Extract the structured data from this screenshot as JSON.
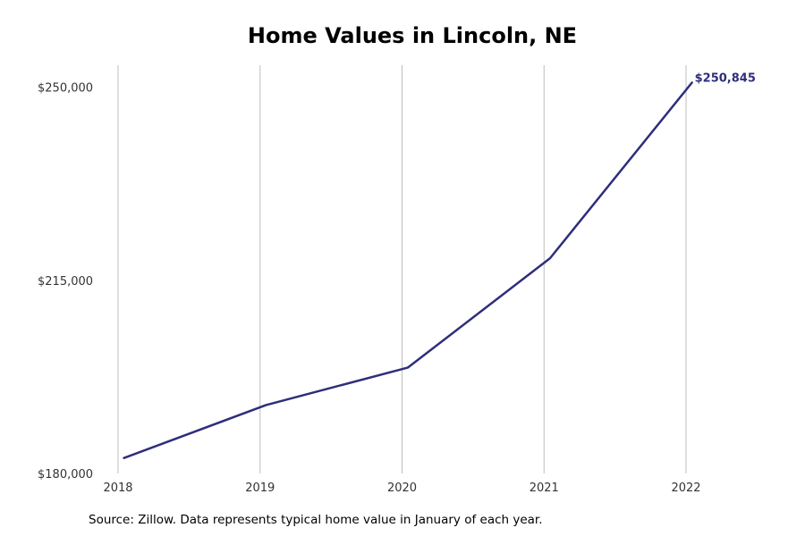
{
  "chart_data": {
    "type": "line",
    "title": "Home Values in Lincoln, NE",
    "xlabel": "",
    "ylabel": "",
    "x_ticks": [
      "2018",
      "2019",
      "2020",
      "2021",
      "2022"
    ],
    "y_ticks": [
      "$180,000",
      "$215,000",
      "$250,000"
    ],
    "y_tick_values": [
      180000,
      215000,
      250000
    ],
    "ylim": [
      180000,
      254000
    ],
    "grid": "vertical",
    "series": [
      {
        "color": "#2e2e7a",
        "x": [
          "2018-01",
          "2019-01",
          "2020-01",
          "2021-01",
          "2022-01"
        ],
        "values": [
          182800,
          192400,
          199200,
          219000,
          250845
        ]
      }
    ],
    "end_label": "$250,845",
    "source_note": "Source: Zillow. Data represents typical home value in January of each year."
  }
}
